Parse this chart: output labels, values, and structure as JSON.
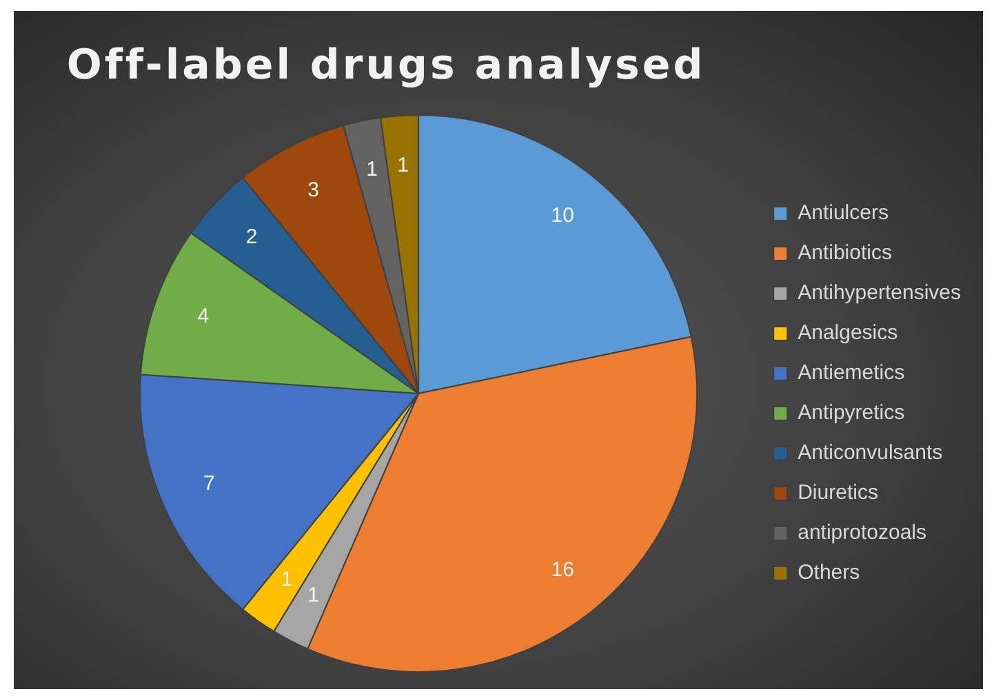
{
  "chart_data": {
    "type": "pie",
    "title": "Off-label drugs analysed",
    "categories": [
      "Antiulcers",
      "Antibiotics",
      "Antihypertensives",
      "Analgesics",
      "Antiemetics",
      "Antipyretics",
      "Anticonvulsants",
      "Diuretics",
      "antiprotozoals",
      "Others"
    ],
    "values": [
      10,
      16,
      1,
      1,
      7,
      4,
      2,
      3,
      1,
      1
    ],
    "colors": [
      "#5b9bd5",
      "#ed7d31",
      "#a5a5a5",
      "#ffc000",
      "#4472c4",
      "#70ad47",
      "#255e91",
      "#9e480e",
      "#636363",
      "#997300"
    ],
    "data_labels": true,
    "legend": "right"
  }
}
